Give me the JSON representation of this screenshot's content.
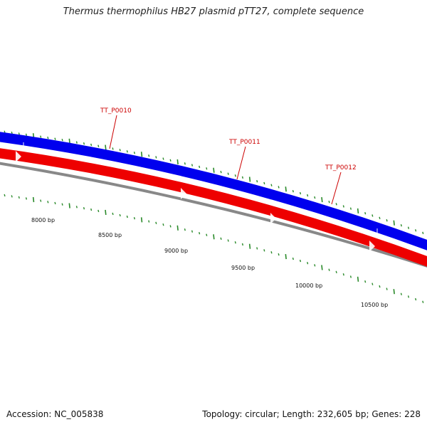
{
  "title": "Thermus thermophilus HB27 plasmid pTT27, complete sequence",
  "footer": {
    "accession": "Accession: NC_005838",
    "summary": "Topology: circular; Length: 232,605 bp; Genes: 228"
  },
  "colors": {
    "forward_strand": "#0000ee",
    "reverse_strand": "#ee0000",
    "backbone": "#888888",
    "ticks": "#2a8a2a",
    "gene_label": "#cc0000"
  },
  "tick_labels": [
    "8000 bp",
    "8500 bp",
    "9000 bp",
    "9500 bp",
    "10000 bp",
    "10500 bp"
  ],
  "gene_labels": [
    "TT_P0010",
    "TT_P0011",
    "TT_P0012"
  ]
}
